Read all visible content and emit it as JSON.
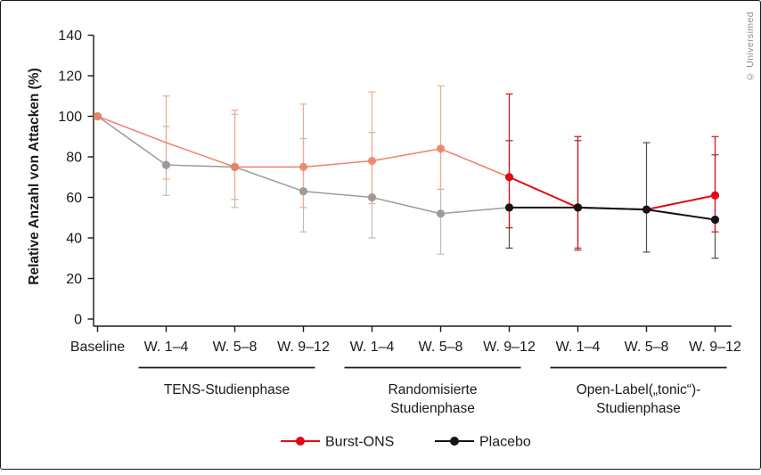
{
  "watermark": "© Universimed",
  "palette": {
    "burst_early": "#ee8166",
    "burst_late": "#e30613",
    "burst_err_early": "#f3a891",
    "burst_err_late": "#e30613",
    "placebo_early": "#9b9b9b",
    "placebo_late": "#141414",
    "placebo_err_early": "#bcbcbc",
    "placebo_err_late": "#4d4d4d",
    "axis": "#1a1a1a",
    "text": "#1a1a1a",
    "watermark_gray": "#8c8c8c"
  },
  "chart_data": {
    "type": "line",
    "title": "",
    "xlabel": "",
    "ylabel": "Relative Anzahl von Attacken (%)",
    "ylim": [
      0,
      140
    ],
    "yticks": [
      0,
      20,
      40,
      60,
      80,
      100,
      120,
      140
    ],
    "grid": false,
    "legend_position": "bottom",
    "categories": [
      "Baseline",
      "W. 1–4",
      "W. 5–8",
      "W. 9–12",
      "W. 1–4",
      "W. 5–8",
      "W. 9–12",
      "W. 1–4",
      "W. 5–8",
      "W. 9–12"
    ],
    "phases": [
      {
        "lines": [
          "TENS-Studienphase"
        ],
        "from": 1,
        "to": 3
      },
      {
        "lines": [
          "Randomisierte",
          "Studienphase"
        ],
        "from": 4,
        "to": 6
      },
      {
        "lines": [
          "Open-Label(„tonic“)-",
          "Studienphase"
        ],
        "from": 7,
        "to": 9
      }
    ],
    "series": [
      {
        "name": "Burst-ONS",
        "switch_index": 6,
        "values": [
          100,
          87,
          75,
          75,
          78,
          84,
          70,
          55,
          54,
          61
        ],
        "markers": [
          true,
          false,
          true,
          true,
          true,
          true,
          true,
          true,
          false,
          true
        ],
        "err_low": [
          null,
          69,
          59,
          55,
          57,
          64,
          45,
          34,
          null,
          43
        ],
        "err_high": [
          null,
          110,
          103,
          106,
          112,
          115,
          111,
          90,
          null,
          90
        ]
      },
      {
        "name": "Placebo",
        "switch_index": 6,
        "values": [
          100,
          76,
          75,
          63,
          60,
          52,
          55,
          55,
          54,
          49
        ],
        "markers": [
          true,
          true,
          true,
          true,
          true,
          true,
          true,
          true,
          true,
          true
        ],
        "err_low": [
          null,
          61,
          55,
          43,
          40,
          32,
          35,
          35,
          33,
          30
        ],
        "err_high": [
          null,
          95,
          101,
          89,
          92,
          85,
          88,
          88,
          87,
          81
        ]
      }
    ],
    "legend": [
      {
        "label": "Burst-ONS",
        "color": "#e30613"
      },
      {
        "label": "Placebo",
        "color": "#141414"
      }
    ]
  }
}
